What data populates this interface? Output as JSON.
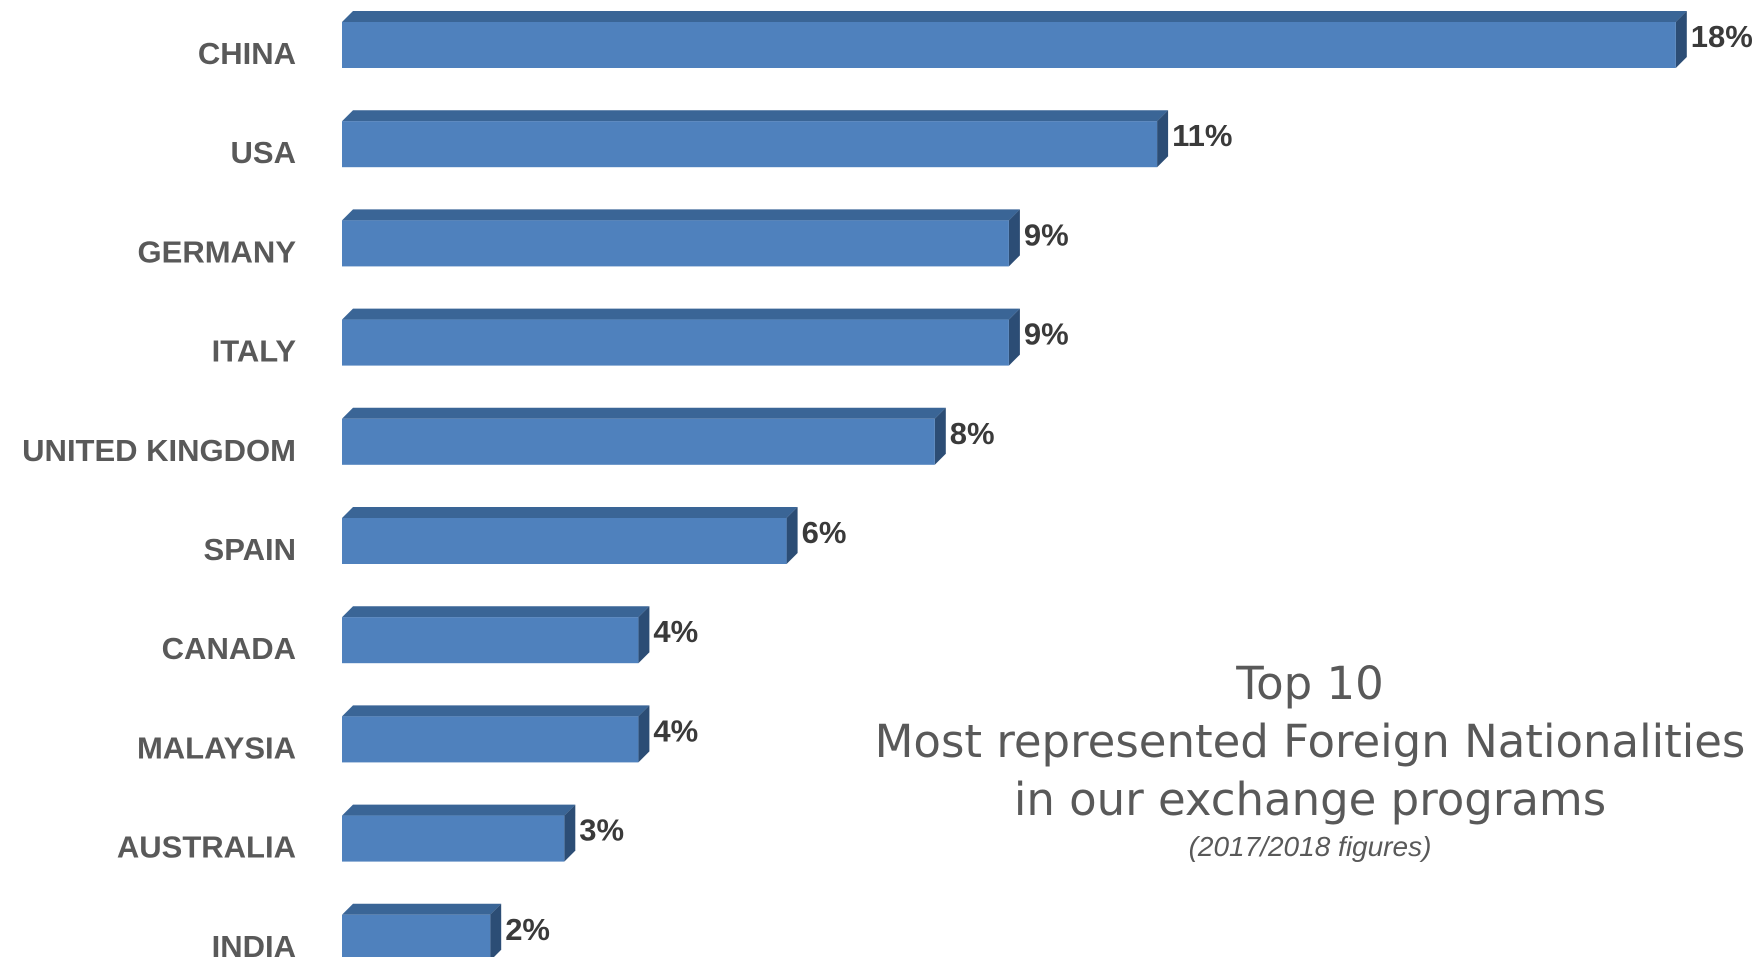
{
  "chart_data": {
    "type": "bar",
    "orientation": "horizontal",
    "categories": [
      "CHINA",
      "USA",
      "GERMANY",
      "ITALY",
      "UNITED KINGDOM",
      "SPAIN",
      "CANADA",
      "MALAYSIA",
      "AUSTRALIA",
      "INDIA"
    ],
    "values": [
      18,
      11,
      9,
      9,
      8,
      6,
      4,
      4,
      3,
      2
    ],
    "value_labels": [
      "18%",
      "11%",
      "9%",
      "9%",
      "8%",
      "6%",
      "4%",
      "4%",
      "3%",
      "2%"
    ],
    "unit": "%",
    "style": "3d",
    "grid": false,
    "legend": "none"
  },
  "caption": {
    "title": "Top 10",
    "line1": "Most represented Foreign Nationalities",
    "line2": "in our exchange programs",
    "note": "(2017/2018 figures)"
  },
  "colors": {
    "bar_front": "#4f81bd",
    "bar_top": "#3a6596",
    "bar_side": "#2c4d75",
    "label_text": "#595959",
    "value_text": "#3a3a3a"
  }
}
